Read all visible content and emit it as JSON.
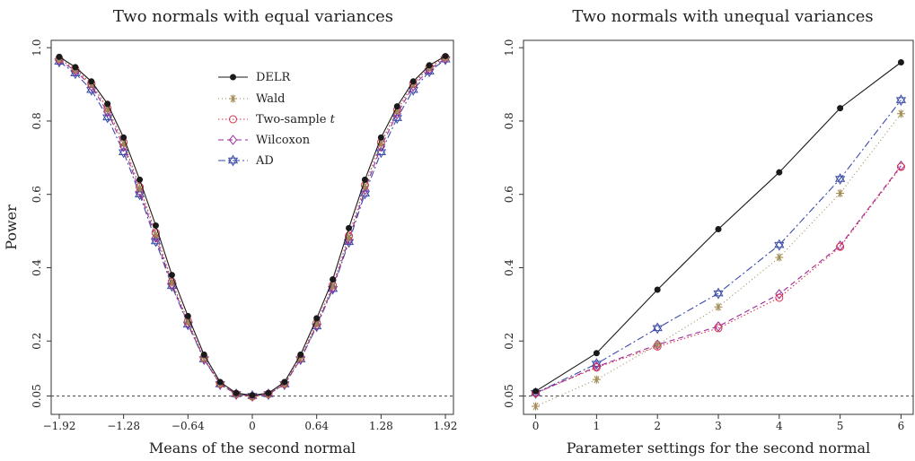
{
  "chart_data": [
    {
      "type": "line",
      "title": "Two normals with equal variances",
      "xlabel": "Means of the second normal",
      "ylabel": "Power",
      "xlim": [
        -2.0,
        2.0
      ],
      "ylim": [
        0.0,
        1.02
      ],
      "xticks": [
        -1.92,
        -1.28,
        -0.64,
        0,
        0.64,
        1.28,
        1.92
      ],
      "xtick_labels": [
        "−1.92",
        "−1.28",
        "−0.64",
        "0",
        "0.64",
        "1.28",
        "1.92"
      ],
      "yticks": [
        0.05,
        0.2,
        0.4,
        0.6,
        0.8,
        1.0
      ],
      "ytick_labels": [
        "0.05",
        "0.2",
        "0.4",
        "0.6",
        "0.8",
        "1.0"
      ],
      "reference_line": 0.05,
      "grid": false,
      "legend_position": "top-right",
      "x": [
        -1.92,
        -1.76,
        -1.6,
        -1.44,
        -1.28,
        -1.12,
        -0.96,
        -0.8,
        -0.64,
        -0.48,
        -0.32,
        -0.16,
        0,
        0.16,
        0.32,
        0.48,
        0.64,
        0.8,
        0.96,
        1.12,
        1.28,
        1.44,
        1.6,
        1.76,
        1.92
      ],
      "series": [
        {
          "name": "DELR",
          "values": [
            0.975,
            0.947,
            0.908,
            0.847,
            0.755,
            0.64,
            0.515,
            0.38,
            0.268,
            0.163,
            0.088,
            0.058,
            0.052,
            0.058,
            0.088,
            0.163,
            0.262,
            0.368,
            0.508,
            0.64,
            0.755,
            0.84,
            0.908,
            0.952,
            0.977
          ]
        },
        {
          "name": "Wald",
          "values": [
            0.968,
            0.94,
            0.9,
            0.832,
            0.738,
            0.617,
            0.49,
            0.36,
            0.252,
            0.153,
            0.083,
            0.055,
            0.048,
            0.055,
            0.083,
            0.153,
            0.247,
            0.35,
            0.483,
            0.622,
            0.738,
            0.828,
            0.9,
            0.945,
            0.972
          ]
        },
        {
          "name": "Two-sample t",
          "values": [
            0.97,
            0.942,
            0.902,
            0.835,
            0.742,
            0.62,
            0.495,
            0.362,
            0.255,
            0.155,
            0.084,
            0.056,
            0.049,
            0.056,
            0.084,
            0.155,
            0.25,
            0.352,
            0.487,
            0.625,
            0.742,
            0.83,
            0.902,
            0.947,
            0.974
          ]
        },
        {
          "name": "Wilcoxon",
          "values": [
            0.966,
            0.937,
            0.895,
            0.825,
            0.73,
            0.608,
            0.482,
            0.355,
            0.248,
            0.151,
            0.082,
            0.055,
            0.049,
            0.055,
            0.082,
            0.151,
            0.243,
            0.345,
            0.476,
            0.612,
            0.73,
            0.82,
            0.895,
            0.941,
            0.97
          ]
        },
        {
          "name": "AD",
          "values": [
            0.962,
            0.93,
            0.885,
            0.81,
            0.715,
            0.6,
            0.472,
            0.35,
            0.245,
            0.15,
            0.082,
            0.055,
            0.05,
            0.055,
            0.082,
            0.15,
            0.24,
            0.342,
            0.47,
            0.602,
            0.715,
            0.808,
            0.885,
            0.935,
            0.968
          ]
        }
      ]
    },
    {
      "type": "line",
      "title": "Two normals with unequal variances",
      "xlabel": "Parameter settings for the second normal",
      "ylabel": "",
      "xlim": [
        -0.2,
        6.2
      ],
      "ylim": [
        0.0,
        1.02
      ],
      "xticks": [
        0,
        1,
        2,
        3,
        4,
        5,
        6
      ],
      "xtick_labels": [
        "0",
        "1",
        "2",
        "3",
        "4",
        "5",
        "6"
      ],
      "yticks": [
        0.05,
        0.2,
        0.4,
        0.6,
        0.8,
        1.0
      ],
      "ytick_labels": [
        "0.05",
        "0.2",
        "0.4",
        "0.6",
        "0.8",
        "1.0"
      ],
      "reference_line": 0.05,
      "grid": false,
      "x": [
        0,
        1,
        2,
        3,
        4,
        5,
        6
      ],
      "series": [
        {
          "name": "DELR",
          "values": [
            0.063,
            0.167,
            0.34,
            0.505,
            0.66,
            0.835,
            0.96
          ]
        },
        {
          "name": "Wald",
          "values": [
            0.022,
            0.095,
            0.19,
            0.293,
            0.428,
            0.603,
            0.82
          ]
        },
        {
          "name": "Two-sample t",
          "values": [
            0.058,
            0.128,
            0.185,
            0.235,
            0.318,
            0.457,
            0.675
          ]
        },
        {
          "name": "Wilcoxon",
          "values": [
            0.058,
            0.13,
            0.19,
            0.24,
            0.328,
            0.46,
            0.678
          ]
        },
        {
          "name": "AD",
          "values": [
            0.058,
            0.138,
            0.235,
            0.33,
            0.462,
            0.642,
            0.857
          ]
        }
      ]
    }
  ],
  "styles": {
    "DELR": {
      "color": "#1a1a1a",
      "marker": "dot",
      "dash": ""
    },
    "Wald": {
      "color": "#a08a50",
      "marker": "asterisk",
      "dash": "1,3"
    },
    "Two-sample t": {
      "color": "#d8304a",
      "marker": "circle",
      "dash": "1.5,2.5"
    },
    "Wilcoxon": {
      "color": "#9a2a9a",
      "marker": "diamond",
      "dash": "6,4"
    },
    "AD": {
      "color": "#3a4aa8",
      "marker": "star-of-david",
      "dash": "8,3,2,3"
    },
    "reference_line_color": "#555555"
  }
}
